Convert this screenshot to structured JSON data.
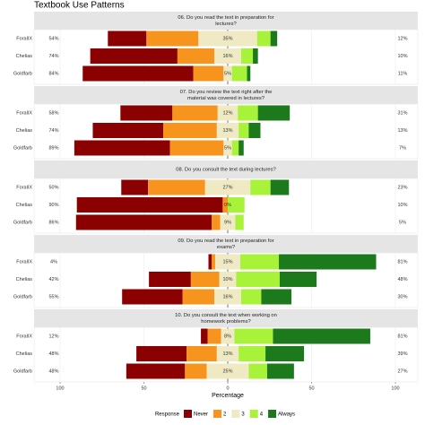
{
  "chart_data": {
    "type": "likert",
    "title": "Textbook Use Patterns",
    "categories": [
      "ForalIX",
      "Chelias",
      "Goldfarb"
    ],
    "x_label": "Percentage",
    "legend_title": "Response",
    "series": [
      {
        "name": "Never",
        "color": "#8b0000"
      },
      {
        "name": "2",
        "color": "#f7941d"
      },
      {
        "name": "3",
        "color": "#efe9c4"
      },
      {
        "name": "4",
        "color": "#a8f23a"
      },
      {
        "name": "Always",
        "color": "#1c7a1c"
      }
    ],
    "xlim": [
      -100,
      100
    ],
    "xticks": [
      {
        "value": -100,
        "label": "100"
      },
      {
        "value": -50,
        "label": "50"
      },
      0,
      50,
      100
    ],
    "grid": true,
    "panels": [
      {
        "title": [
          "06. Do you read the text in preparation for",
          "lectures?"
        ],
        "values": [
          [
            23,
            52,
            66
          ],
          [
            31,
            22,
            18
          ],
          [
            35,
            16,
            5
          ],
          [
            8,
            7,
            9
          ],
          [
            4,
            3,
            2
          ]
        ],
        "center_labels": [
          "35%",
          "16%",
          "5%"
        ],
        "left_labels": [
          "54%",
          "74%",
          "84%"
        ],
        "right_labels": [
          "12%",
          "10%",
          "11%"
        ]
      },
      {
        "title": [
          "07. Do you review the text right after the",
          "material was covered in lectures?"
        ],
        "values": [
          [
            31,
            42,
            57
          ],
          [
            27,
            32,
            32
          ],
          [
            12,
            13,
            5
          ],
          [
            12,
            6,
            4
          ],
          [
            19,
            7,
            3
          ]
        ],
        "center_labels": [
          "12%",
          "13%",
          "5%"
        ],
        "left_labels": [
          "58%",
          "74%",
          "89%"
        ],
        "right_labels": [
          "31%",
          "13%",
          "7%"
        ]
      },
      {
        "title": [
          "08. Do you consult the text during lectures?"
        ],
        "values": [
          [
            16,
            87,
            81
          ],
          [
            34,
            3,
            5
          ],
          [
            27,
            0,
            9
          ],
          [
            12,
            10,
            5
          ],
          [
            11,
            0,
            0
          ]
        ],
        "center_labels": [
          "27%",
          "0%",
          "9%"
        ],
        "left_labels": [
          "50%",
          "90%",
          "86%"
        ],
        "right_labels": [
          "23%",
          "10%",
          "5%"
        ]
      },
      {
        "title": [
          "09. Do you read the text in preparation for",
          "exams?"
        ],
        "values": [
          [
            2,
            25,
            36
          ],
          [
            2,
            17,
            19
          ],
          [
            15,
            10,
            16
          ],
          [
            23,
            26,
            12
          ],
          [
            58,
            22,
            18
          ]
        ],
        "center_labels": [
          "15%",
          "10%",
          "16%"
        ],
        "left_labels": [
          "4%",
          "42%",
          "55%"
        ],
        "right_labels": [
          "81%",
          "48%",
          "30%"
        ]
      },
      {
        "title": [
          "10. Do you consult the text when working on",
          "homework problems?"
        ],
        "values": [
          [
            4,
            30,
            35
          ],
          [
            8,
            18,
            13
          ],
          [
            8,
            13,
            25
          ],
          [
            23,
            16,
            11
          ],
          [
            58,
            23,
            16
          ]
        ],
        "center_labels": [
          "8%",
          "13%",
          "25%"
        ],
        "left_labels": [
          "12%",
          "48%",
          "48%"
        ],
        "right_labels": [
          "81%",
          "39%",
          "27%"
        ]
      }
    ]
  }
}
